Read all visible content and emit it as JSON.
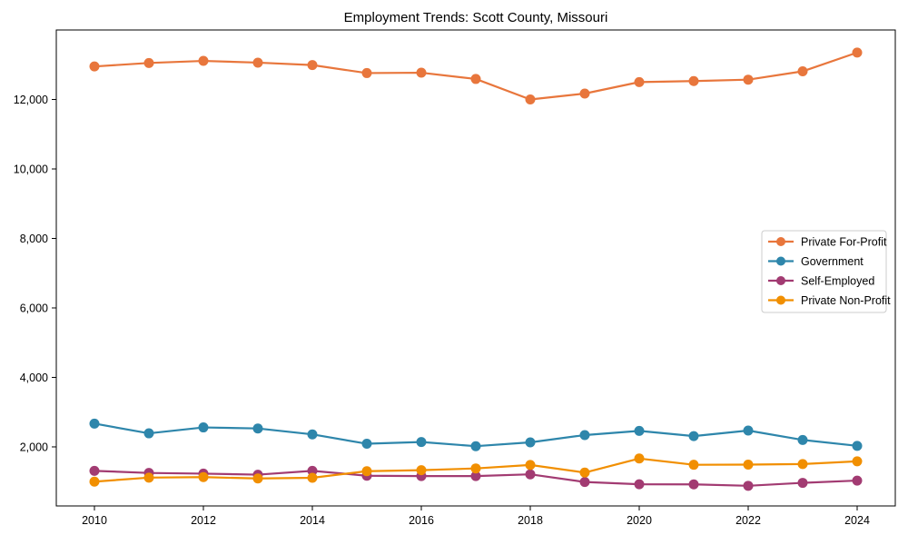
{
  "chart_data": {
    "type": "line",
    "title": "Employment Trends: Scott County, Missouri",
    "xlabel": "",
    "ylabel": "",
    "x": [
      2010,
      2011,
      2012,
      2013,
      2014,
      2015,
      2016,
      2017,
      2018,
      2019,
      2020,
      2021,
      2022,
      2023,
      2024
    ],
    "series": [
      {
        "name": "Private For-Profit",
        "color": "#E8763C",
        "values": [
          12950,
          13050,
          13110,
          13060,
          12990,
          12760,
          12770,
          12590,
          12000,
          12170,
          12500,
          12530,
          12570,
          12810,
          13350
        ]
      },
      {
        "name": "Government",
        "color": "#2E86AB",
        "values": [
          2670,
          2390,
          2560,
          2530,
          2360,
          2090,
          2140,
          2020,
          2130,
          2340,
          2460,
          2310,
          2470,
          2200,
          2030
        ]
      },
      {
        "name": "Self-Employed",
        "color": "#A23B72",
        "values": [
          1310,
          1250,
          1230,
          1200,
          1310,
          1170,
          1160,
          1160,
          1210,
          990,
          925,
          920,
          880,
          965,
          1030
        ]
      },
      {
        "name": "Private Non-Profit",
        "color": "#F18F01",
        "values": [
          1000,
          1115,
          1130,
          1090,
          1110,
          1300,
          1330,
          1380,
          1480,
          1260,
          1665,
          1485,
          1490,
          1505,
          1585
        ]
      }
    ],
    "xticks": [
      2010,
      2012,
      2014,
      2016,
      2018,
      2020,
      2022,
      2024
    ],
    "yticks": [
      2000,
      4000,
      6000,
      8000,
      10000,
      12000
    ],
    "ytick_labels": [
      "2,000",
      "4,000",
      "6,000",
      "8,000",
      "10,000",
      "12,000"
    ],
    "xlim": [
      2009.3,
      2024.7
    ],
    "ylim": [
      300,
      14000
    ],
    "grid": false,
    "legend_position": "center-right",
    "legend_border_color": "#cccccc",
    "axis_color": "#000000",
    "marker": "circle"
  }
}
